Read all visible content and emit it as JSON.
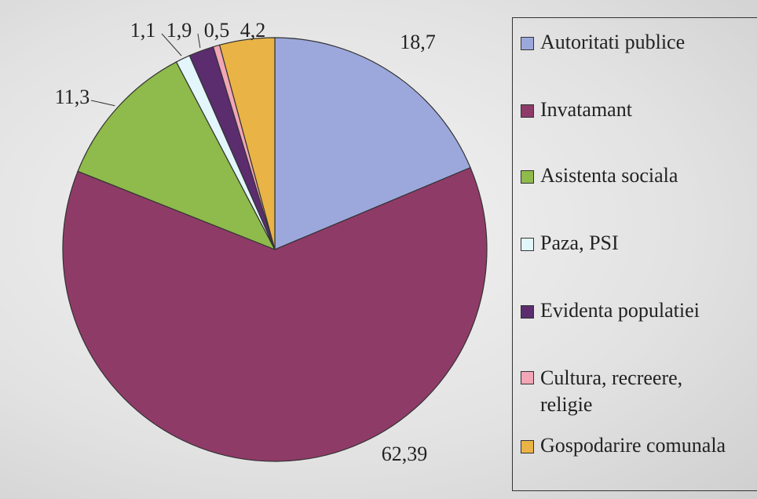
{
  "chart_data": {
    "type": "pie",
    "categories": [
      "Autoritati publice",
      "Invatamant",
      "Asistenta sociala",
      "Paza, PSI",
      "Evidenta populatiei",
      "Cultura, recreere, religie",
      "Gospodarire comunala"
    ],
    "values": [
      18.7,
      62.39,
      11.3,
      1.1,
      1.9,
      0.5,
      4.2
    ],
    "value_labels": [
      "18,7",
      "62,39",
      "11,3",
      "1,1",
      "1,9",
      "0,5",
      "4,2"
    ],
    "colors": [
      "#9ca8dc",
      "#8f3b68",
      "#8fba4c",
      "#e2f6fb",
      "#5b2c6e",
      "#f2a6b6",
      "#e9b445"
    ],
    "legend": "right"
  }
}
